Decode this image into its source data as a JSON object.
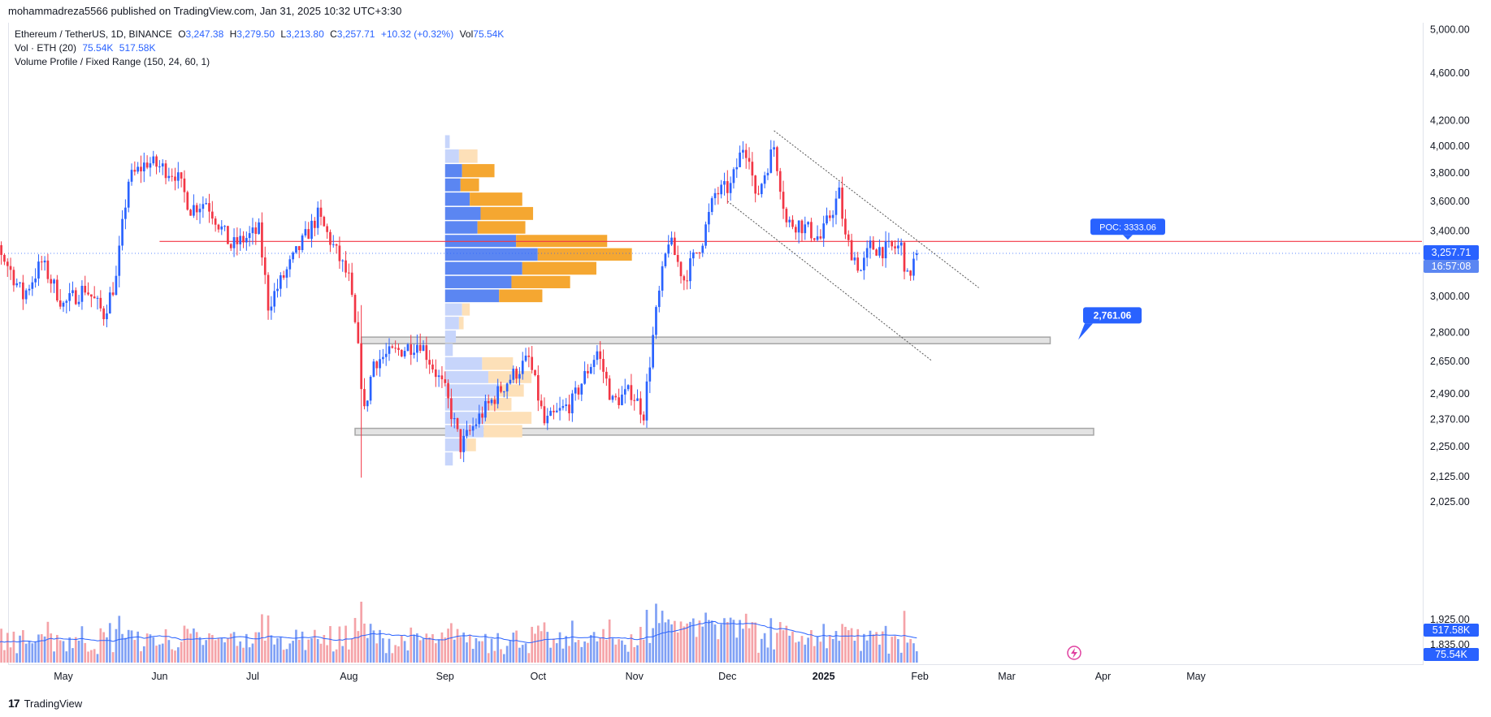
{
  "publisher": "mohammadreza5566 published on TradingView.com, Jan 31, 2025 10:32 UTC+3:30",
  "legend": {
    "symbol": "Ethereum / TetherUS, 1D, BINANCE",
    "o_label": "O",
    "o": "3,247.38",
    "h_label": "H",
    "h": "3,279.50",
    "l_label": "L",
    "l": "3,213.80",
    "c_label": "C",
    "c": "3,257.71",
    "change": "+10.32 (+0.32%)",
    "vol_label": "Vol",
    "vol": "75.54K",
    "vol_ind": "Vol · ETH (20)",
    "vol_ind_v1": "75.54K",
    "vol_ind_v2": "517.58K",
    "vp": "Volume Profile / Fixed Range (150, 24, 60, 1)"
  },
  "footer": {
    "logo": "17",
    "brand": "TradingView"
  },
  "colors": {
    "up": "#2962ff",
    "down": "#f23645",
    "poc": "#f23645",
    "vol_up": "#7fa0f5",
    "vol_down": "#f5a3a8",
    "vp_up": "#5b86f2",
    "vp_down": "#f5a731",
    "vp_up_light": "#c7d5fb",
    "vp_down_light": "#fde0b8",
    "ma": "#2962ff",
    "zone": "#a6a6a6"
  },
  "chart_data": {
    "type": "candlestick",
    "symbol": "ETHUSDT",
    "interval": "1D",
    "exchange": "BINANCE",
    "price_scale": "log",
    "ylim": [
      1800,
      5100
    ],
    "y_ticks": [
      "5,000.00",
      "4,600.00",
      "4,200.00",
      "4,000.00",
      "3,800.00",
      "3,600.00",
      "3,400.00",
      "3,000.00",
      "2,800.00",
      "2,650.00",
      "2,490.00",
      "2,370.00",
      "2,250.00",
      "2,125.00",
      "2,025.00",
      "1,925.00",
      "1,835.00"
    ],
    "y_tick_values": [
      5000,
      4600,
      4200,
      4000,
      3800,
      3600,
      3400,
      3000,
      2800,
      2650,
      2490,
      2370,
      2250,
      2125,
      2025,
      1925,
      1835
    ],
    "x_ticks": [
      "May",
      "Jun",
      "Jul",
      "Aug",
      "Sep",
      "Oct",
      "Nov",
      "Dec",
      "2025",
      "Feb",
      "Mar",
      "Apr",
      "May"
    ],
    "x_tick_dates": [
      "2024-05-01",
      "2024-06-01",
      "2024-07-01",
      "2024-08-01",
      "2024-09-01",
      "2024-10-01",
      "2024-11-01",
      "2024-12-01",
      "2025-01-01",
      "2025-02-01",
      "2025-03-01",
      "2025-04-01",
      "2025-05-01"
    ],
    "x_range": [
      "2024-04-01",
      "2025-05-01"
    ],
    "price_anchors": [
      [
        "2024-04-01",
        3150
      ],
      [
        "2024-04-10",
        3300
      ],
      [
        "2024-04-18",
        3000
      ],
      [
        "2024-04-24",
        3200
      ],
      [
        "2024-05-01",
        2950
      ],
      [
        "2024-05-08",
        3050
      ],
      [
        "2024-05-14",
        2900
      ],
      [
        "2024-05-18",
        3100
      ],
      [
        "2024-05-22",
        3750
      ],
      [
        "2024-05-28",
        3880
      ],
      [
        "2024-06-06",
        3800
      ],
      [
        "2024-06-11",
        3550
      ],
      [
        "2024-06-16",
        3600
      ],
      [
        "2024-06-24",
        3300
      ],
      [
        "2024-07-03",
        3400
      ],
      [
        "2024-07-06",
        2950
      ],
      [
        "2024-07-12",
        3150
      ],
      [
        "2024-07-22",
        3500
      ],
      [
        "2024-07-27",
        3300
      ],
      [
        "2024-08-01",
        3100
      ],
      [
        "2024-08-04",
        2700
      ],
      [
        "2024-08-06",
        2400
      ],
      [
        "2024-08-09",
        2650
      ],
      [
        "2024-08-24",
        2750
      ],
      [
        "2024-09-01",
        2500
      ],
      [
        "2024-09-06",
        2250
      ],
      [
        "2024-09-12",
        2380
      ],
      [
        "2024-09-21",
        2550
      ],
      [
        "2024-09-28",
        2660
      ],
      [
        "2024-10-03",
        2350
      ],
      [
        "2024-10-12",
        2450
      ],
      [
        "2024-10-20",
        2700
      ],
      [
        "2024-10-25",
        2450
      ],
      [
        "2024-10-31",
        2500
      ],
      [
        "2024-11-04",
        2400
      ],
      [
        "2024-11-08",
        2900
      ],
      [
        "2024-11-12",
        3350
      ],
      [
        "2024-11-17",
        3100
      ],
      [
        "2024-11-23",
        3350
      ],
      [
        "2024-11-27",
        3650
      ],
      [
        "2024-12-02",
        3700
      ],
      [
        "2024-12-06",
        4000
      ],
      [
        "2024-12-08",
        3950
      ],
      [
        "2024-12-10",
        3600
      ],
      [
        "2024-12-16",
        4000
      ],
      [
        "2024-12-20",
        3450
      ],
      [
        "2024-12-24",
        3450
      ],
      [
        "2024-12-31",
        3350
      ],
      [
        "2025-01-06",
        3650
      ],
      [
        "2025-01-08",
        3350
      ],
      [
        "2025-01-13",
        3150
      ],
      [
        "2025-01-16",
        3300
      ],
      [
        "2025-01-21",
        3280
      ],
      [
        "2025-01-26",
        3300
      ],
      [
        "2025-01-28",
        3100
      ],
      [
        "2025-01-31",
        3257.71
      ]
    ],
    "last_price": "3,257.71",
    "countdown": "16:57:08",
    "poc": {
      "label": "POC: 3333.06",
      "price": 3333.06,
      "from": "2024-06-01",
      "to": "2025-05-01"
    },
    "marked_level": {
      "label": "2,761.06",
      "price": 2761.06,
      "date": "2025-01-31"
    },
    "support_zones": [
      {
        "price_low": 2740,
        "price_high": 2775,
        "from": "2024-08-05",
        "to": "2025-03-15"
      },
      {
        "price_low": 2300,
        "price_high": 2330,
        "from": "2024-08-03",
        "to": "2025-03-29"
      }
    ],
    "channel": {
      "upper": [
        [
          "2024-12-16",
          4120
        ],
        [
          "2025-02-20",
          3050
        ]
      ],
      "lower": [
        [
          "2024-12-01",
          3600
        ],
        [
          "2025-02-05",
          2650
        ]
      ]
    },
    "volume_profile": {
      "range": [
        "2024-09-01",
        "2024-10-04"
      ],
      "rows": [
        {
          "price_low": 3975,
          "price_high": 4085,
          "up": 6,
          "down": 0
        },
        {
          "price_low": 3865,
          "price_high": 3975,
          "up": 18,
          "down": 24
        },
        {
          "price_low": 3760,
          "price_high": 3865,
          "up": 22,
          "down": 42
        },
        {
          "price_low": 3660,
          "price_high": 3760,
          "up": 20,
          "down": 24
        },
        {
          "price_low": 3560,
          "price_high": 3660,
          "up": 32,
          "down": 68
        },
        {
          "price_low": 3465,
          "price_high": 3560,
          "up": 46,
          "down": 68
        },
        {
          "price_low": 3375,
          "price_high": 3465,
          "up": 42,
          "down": 62
        },
        {
          "price_low": 3290,
          "price_high": 3375,
          "up": 92,
          "down": 118
        },
        {
          "price_low": 3205,
          "price_high": 3290,
          "up": 120,
          "down": 122
        },
        {
          "price_low": 3120,
          "price_high": 3205,
          "up": 100,
          "down": 96
        },
        {
          "price_low": 3040,
          "price_high": 3120,
          "up": 86,
          "down": 76
        },
        {
          "price_low": 2960,
          "price_high": 3040,
          "up": 70,
          "down": 56
        },
        {
          "price_low": 2885,
          "price_high": 2960,
          "up": 22,
          "down": 10
        },
        {
          "price_low": 2810,
          "price_high": 2885,
          "up": 18,
          "down": 6
        },
        {
          "price_low": 2740,
          "price_high": 2810,
          "up": 14,
          "down": 0
        },
        {
          "price_low": 2670,
          "price_high": 2740,
          "up": 10,
          "down": 0
        },
        {
          "price_low": 2600,
          "price_high": 2670,
          "up": 48,
          "down": 40
        },
        {
          "price_low": 2535,
          "price_high": 2600,
          "up": 56,
          "down": 56
        },
        {
          "price_low": 2470,
          "price_high": 2535,
          "up": 70,
          "down": 32
        },
        {
          "price_low": 2405,
          "price_high": 2470,
          "up": 56,
          "down": 30
        },
        {
          "price_low": 2345,
          "price_high": 2405,
          "up": 52,
          "down": 60
        },
        {
          "price_low": 2285,
          "price_high": 2345,
          "up": 50,
          "down": 50
        },
        {
          "price_low": 2225,
          "price_high": 2285,
          "up": 28,
          "down": 12
        },
        {
          "price_low": 2165,
          "price_high": 2225,
          "up": 10,
          "down": 0
        }
      ]
    },
    "volume": {
      "vol_ma": "517.58K",
      "last": "75.54K"
    }
  }
}
